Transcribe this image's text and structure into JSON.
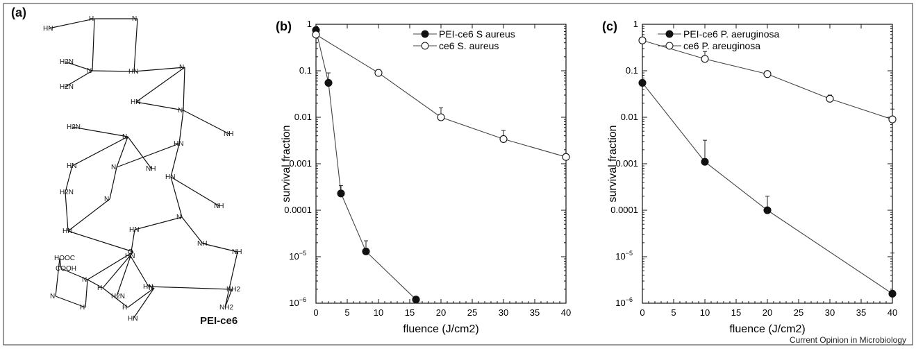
{
  "panel_a": {
    "letter": "(a)",
    "molecule_label": "PEI-ce6",
    "atom_labels": [
      "HN",
      "H",
      "N",
      "H2N",
      "N",
      "H2N",
      "HN",
      "N",
      "HN",
      "N",
      "H2N",
      "N",
      "NH",
      "NH",
      "HN",
      "HN",
      "N",
      "H2N",
      "N",
      "HN",
      "HN",
      "NH",
      "N",
      "HN",
      "NH",
      "HN",
      "H2N",
      "HN",
      "NH2",
      "NH",
      "NH2",
      "HOOC",
      "COOH",
      "O",
      "N",
      "H",
      "N",
      "H",
      "H",
      "N",
      "HN"
    ]
  },
  "footer": "Current Opinion in Microbiology",
  "chart_data": [
    {
      "letter": "(b)",
      "type": "line",
      "xlabel": "fluence (J/cm2)",
      "ylabel": "survival fraction",
      "xlim": [
        0,
        40
      ],
      "ylim": [
        1e-06,
        1
      ],
      "yscale": "log",
      "xticks": [
        0,
        5,
        10,
        15,
        20,
        25,
        30,
        35,
        40
      ],
      "yticks": [
        {
          "v": 1,
          "label": "1"
        },
        {
          "v": 0.1,
          "label": "0.1"
        },
        {
          "v": 0.01,
          "label": "0.01"
        },
        {
          "v": 0.001,
          "label": "0.001"
        },
        {
          "v": 0.0001,
          "label": "0.0001"
        },
        {
          "v": 1e-05,
          "label": "10",
          "exp": "−5"
        },
        {
          "v": 1e-06,
          "label": "10",
          "exp": "−6"
        }
      ],
      "legend_position": "top-right",
      "series": [
        {
          "name": "PEI-ce6 S aureus",
          "marker": "filled",
          "x": [
            0,
            2,
            4,
            8,
            16
          ],
          "y": [
            0.75,
            0.055,
            0.00023,
            1.3e-05,
            1.2e-06
          ],
          "err_upper": [
            null,
            0.09,
            0.00034,
            2.2e-05,
            null
          ]
        },
        {
          "name": "ce6 S. aureus",
          "marker": "open",
          "x": [
            0,
            10,
            20,
            30,
            40
          ],
          "y": [
            0.6,
            0.09,
            0.01,
            0.0034,
            0.0014
          ],
          "err_upper": [
            null,
            null,
            0.016,
            0.0052,
            null
          ]
        }
      ]
    },
    {
      "letter": "(c)",
      "type": "line",
      "xlabel": "fluence (J/cm2)",
      "ylabel": "survival fraction",
      "xlim": [
        0,
        40
      ],
      "ylim": [
        1e-06,
        1
      ],
      "yscale": "log",
      "xticks": [
        0,
        5,
        10,
        15,
        20,
        25,
        30,
        35,
        40
      ],
      "yticks": [
        {
          "v": 1,
          "label": "1"
        },
        {
          "v": 0.1,
          "label": "0.1"
        },
        {
          "v": 0.01,
          "label": "0.01"
        },
        {
          "v": 0.001,
          "label": "0.001"
        },
        {
          "v": 0.0001,
          "label": "0.0001"
        },
        {
          "v": 1e-05,
          "label": "10",
          "exp": "−5"
        },
        {
          "v": 1e-06,
          "label": "10",
          "exp": "−6"
        }
      ],
      "legend_position": "top-right",
      "series": [
        {
          "name": "PEI-ce6 P. aeruginosa",
          "marker": "filled",
          "x": [
            0,
            10,
            20,
            40
          ],
          "y": [
            0.055,
            0.0011,
            0.0001,
            1.6e-06
          ],
          "err_upper": [
            null,
            0.0032,
            0.0002,
            1.2e-05
          ]
        },
        {
          "name": "ce6 P. areuginosa",
          "marker": "open",
          "x": [
            0,
            10,
            20,
            30,
            40
          ],
          "y": [
            0.45,
            0.18,
            0.085,
            0.025,
            0.009
          ],
          "err_upper": [
            null,
            0.26,
            null,
            0.03,
            0.015
          ]
        }
      ]
    }
  ]
}
